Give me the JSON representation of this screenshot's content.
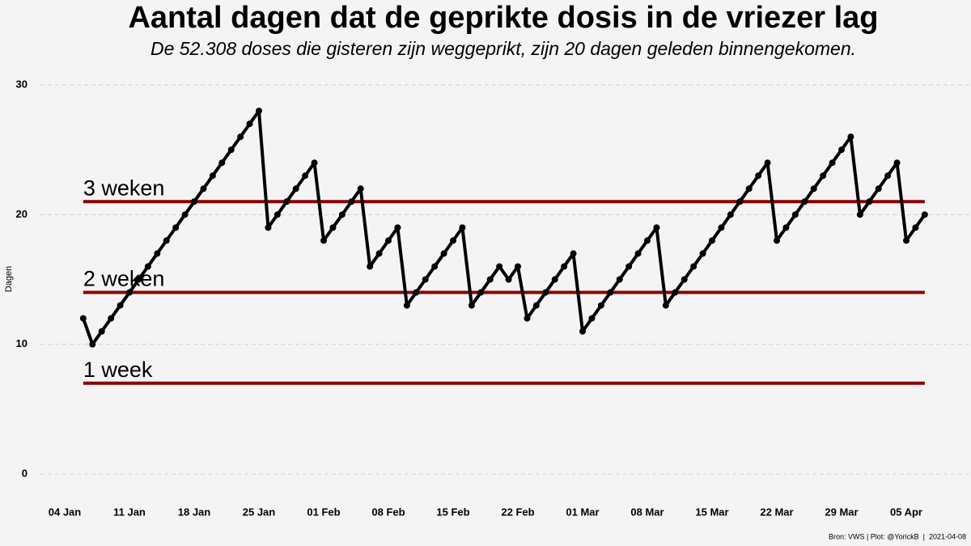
{
  "chart_data": {
    "type": "line",
    "title": "Aantal dagen dat de geprikte dosis in de vriezer lag",
    "subtitle": "De 52.308 doses die gisteren zijn weggeprikt, zijn 20 dagen geleden binnengekomen.",
    "y_label": "Dagen",
    "caption": "Bron: VWS | Plot: @YorickB  |  2021-04-08",
    "x": [
      "06 Jan",
      "07 Jan",
      "08 Jan",
      "09 Jan",
      "10 Jan",
      "11 Jan",
      "12 Jan",
      "13 Jan",
      "14 Jan",
      "15 Jan",
      "16 Jan",
      "17 Jan",
      "18 Jan",
      "19 Jan",
      "20 Jan",
      "21 Jan",
      "22 Jan",
      "23 Jan",
      "24 Jan",
      "25 Jan",
      "26 Jan",
      "27 Jan",
      "28 Jan",
      "29 Jan",
      "30 Jan",
      "31 Jan",
      "01 Feb",
      "02 Feb",
      "03 Feb",
      "04 Feb",
      "05 Feb",
      "06 Feb",
      "07 Feb",
      "08 Feb",
      "09 Feb",
      "10 Feb",
      "11 Feb",
      "12 Feb",
      "13 Feb",
      "14 Feb",
      "15 Feb",
      "16 Feb",
      "17 Feb",
      "18 Feb",
      "19 Feb",
      "20 Feb",
      "21 Feb",
      "22 Feb",
      "23 Feb",
      "24 Feb",
      "25 Feb",
      "26 Feb",
      "27 Feb",
      "28 Feb",
      "01 Mar",
      "02 Mar",
      "03 Mar",
      "04 Mar",
      "05 Mar",
      "06 Mar",
      "07 Mar",
      "08 Mar",
      "09 Mar",
      "10 Mar",
      "11 Mar",
      "12 Mar",
      "13 Mar",
      "14 Mar",
      "15 Mar",
      "16 Mar",
      "17 Mar",
      "18 Mar",
      "19 Mar",
      "20 Mar",
      "21 Mar",
      "22 Mar",
      "23 Mar",
      "24 Mar",
      "25 Mar",
      "26 Mar",
      "27 Mar",
      "28 Mar",
      "29 Mar",
      "30 Mar",
      "31 Mar",
      "01 Apr",
      "02 Apr",
      "03 Apr",
      "04 Apr",
      "05 Apr",
      "06 Apr",
      "07 Apr"
    ],
    "values": [
      12,
      10,
      11,
      12,
      13,
      14,
      15,
      16,
      17,
      18,
      19,
      20,
      21,
      22,
      23,
      24,
      25,
      26,
      27,
      28,
      19,
      20,
      21,
      22,
      23,
      24,
      18,
      19,
      20,
      21,
      22,
      16,
      17,
      18,
      19,
      13,
      14,
      15,
      16,
      17,
      18,
      19,
      13,
      14,
      15,
      16,
      15,
      16,
      12,
      13,
      14,
      15,
      16,
      17,
      11,
      12,
      13,
      14,
      15,
      16,
      17,
      18,
      19,
      13,
      14,
      15,
      16,
      17,
      18,
      19,
      20,
      21,
      22,
      23,
      24,
      18,
      19,
      20,
      21,
      22,
      23,
      24,
      25,
      26,
      20,
      21,
      22,
      23,
      24,
      18,
      19,
      20
    ],
    "color": "#000000",
    "xticks": [
      "04 Jan",
      "11 Jan",
      "18 Jan",
      "25 Jan",
      "01 Feb",
      "08 Feb",
      "15 Feb",
      "22 Feb",
      "01 Mar",
      "08 Mar",
      "15 Mar",
      "22 Mar",
      "29 Mar",
      "05 Apr"
    ],
    "ylim": [
      0,
      30
    ],
    "yticks": [
      0,
      10,
      20,
      30
    ],
    "grid": true,
    "reference_lines": [
      {
        "value": 21,
        "label": "3 weken"
      },
      {
        "value": 14,
        "label": "2 weken"
      },
      {
        "value": 7,
        "label": "1 week"
      }
    ],
    "reference_color": "#8b0000"
  }
}
